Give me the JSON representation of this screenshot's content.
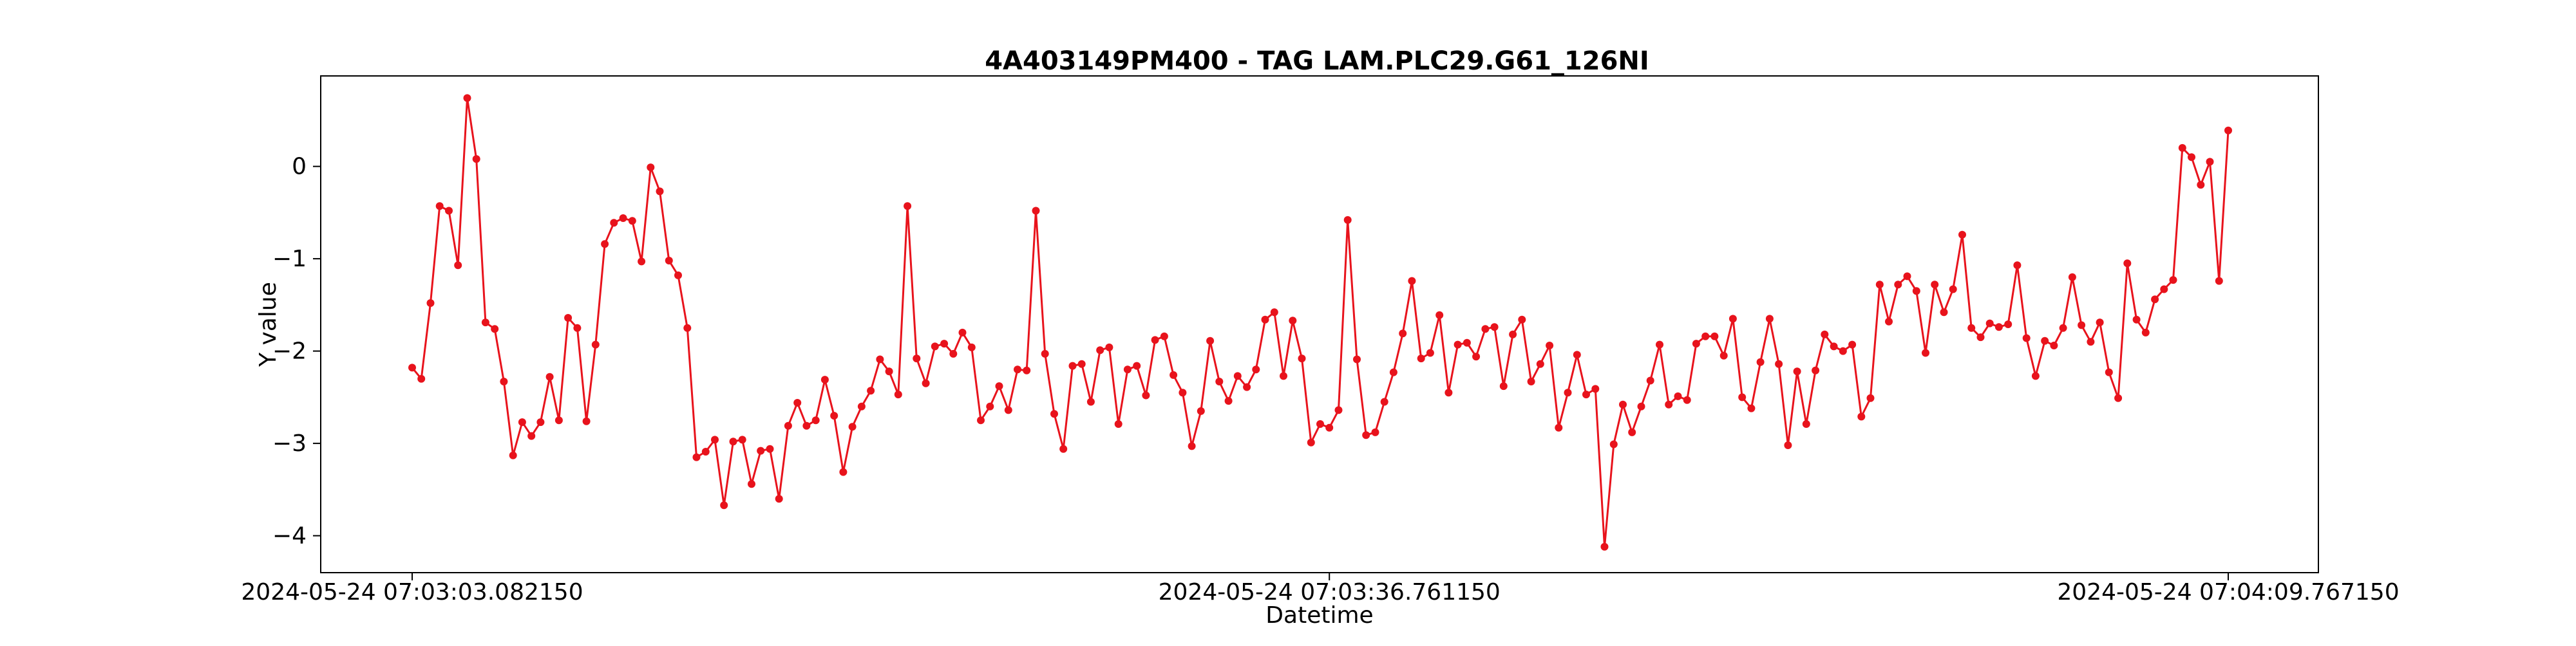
{
  "chart_data": {
    "type": "line",
    "title": "4A403149PM400 - TAG LAM.PLC29.G61_126NI",
    "xlabel": "Datetime",
    "ylabel": "Y value",
    "x_tick_labels": [
      "2024-05-24 07:03:03.082150",
      "2024-05-24 07:03:36.761150",
      "2024-05-24 07:04:09.767150"
    ],
    "x_start": "2024-05-24 07:03:03.082150",
    "x_end": "2024-05-24 07:04:09.767150",
    "y_ticks": [
      0,
      -1,
      -2,
      -3,
      -4
    ],
    "ylim": [
      -4.4,
      0.98
    ],
    "grid": false,
    "line_color": "#e8131c",
    "marker_color": "#e8131c",
    "series": [
      {
        "values": [
          -2.18,
          -2.3,
          -1.48,
          -0.43,
          -0.48,
          -1.07,
          0.74,
          0.08,
          -1.69,
          -1.76,
          -2.33,
          -3.13,
          -2.77,
          -2.92,
          -2.77,
          -2.28,
          -2.75,
          -1.64,
          -1.75,
          -2.76,
          -1.93,
          -0.84,
          -0.61,
          -0.56,
          -0.59,
          -1.03,
          -0.01,
          -0.27,
          -1.02,
          -1.18,
          -1.75,
          -3.15,
          -3.09,
          -2.96,
          -3.67,
          -2.98,
          -2.96,
          -3.44,
          -3.08,
          -3.06,
          -3.6,
          -2.81,
          -2.56,
          -2.81,
          -2.75,
          -2.31,
          -2.7,
          -3.31,
          -2.82,
          -2.6,
          -2.43,
          -2.09,
          -2.22,
          -2.47,
          -0.43,
          -2.08,
          -2.35,
          -1.95,
          -1.92,
          -2.03,
          -1.8,
          -1.96,
          -2.75,
          -2.6,
          -2.38,
          -2.64,
          -2.2,
          -2.21,
          -0.48,
          -2.03,
          -2.68,
          -3.06,
          -2.16,
          -2.14,
          -2.55,
          -1.99,
          -1.96,
          -2.79,
          -2.2,
          -2.16,
          -2.48,
          -1.88,
          -1.84,
          -2.26,
          -2.45,
          -3.03,
          -2.65,
          -1.89,
          -2.33,
          -2.54,
          -2.27,
          -2.39,
          -2.2,
          -1.66,
          -1.58,
          -2.27,
          -1.67,
          -2.08,
          -2.99,
          -2.79,
          -2.83,
          -2.64,
          -0.58,
          -2.09,
          -2.91,
          -2.88,
          -2.55,
          -2.23,
          -1.81,
          -1.24,
          -2.08,
          -2.02,
          -1.61,
          -2.45,
          -1.93,
          -1.91,
          -2.06,
          -1.76,
          -1.74,
          -2.38,
          -1.82,
          -1.66,
          -2.33,
          -2.14,
          -1.94,
          -2.83,
          -2.45,
          -2.04,
          -2.47,
          -2.41,
          -4.12,
          -3.01,
          -2.58,
          -2.88,
          -2.6,
          -2.32,
          -1.93,
          -2.58,
          -2.49,
          -2.53,
          -1.92,
          -1.84,
          -1.84,
          -2.05,
          -1.65,
          -2.5,
          -2.62,
          -2.12,
          -1.65,
          -2.14,
          -3.02,
          -2.22,
          -2.79,
          -2.21,
          -1.82,
          -1.95,
          -2.0,
          -1.93,
          -2.71,
          -2.51,
          -1.28,
          -1.68,
          -1.28,
          -1.19,
          -1.35,
          -2.02,
          -1.28,
          -1.58,
          -1.33,
          -0.74,
          -1.75,
          -1.85,
          -1.7,
          -1.74,
          -1.71,
          -1.07,
          -1.86,
          -2.27,
          -1.89,
          -1.94,
          -1.75,
          -1.2,
          -1.72,
          -1.9,
          -1.69,
          -2.23,
          -2.51,
          -1.05,
          -1.66,
          -1.8,
          -1.44,
          -1.33,
          -1.23,
          0.2,
          0.1,
          -0.2,
          0.05,
          -1.24,
          0.39
        ]
      }
    ]
  }
}
